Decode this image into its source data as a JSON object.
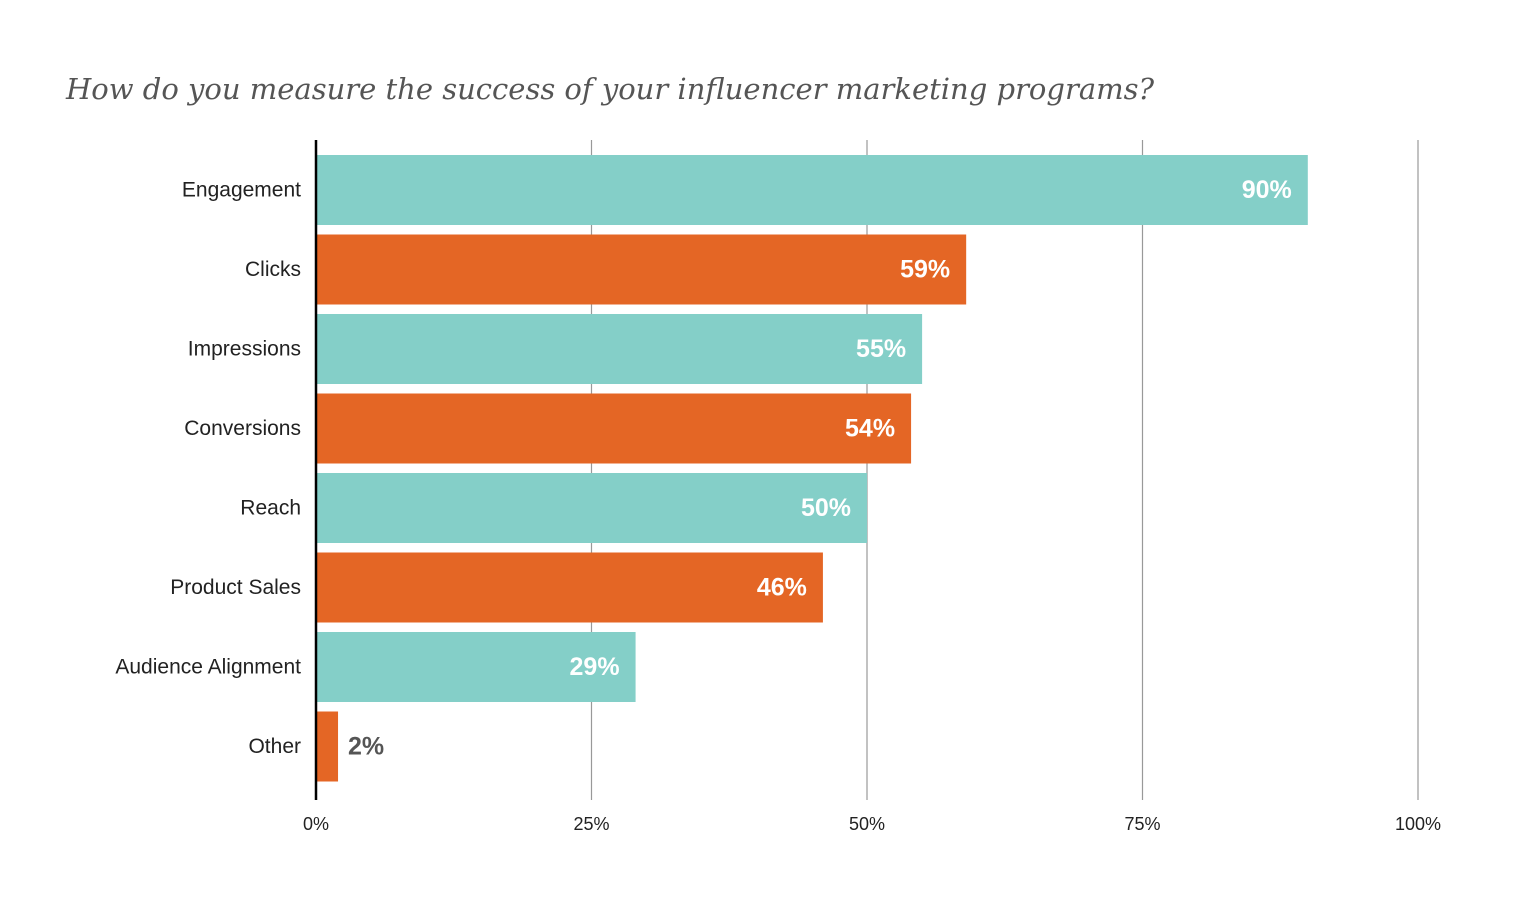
{
  "chart_data": {
    "type": "bar",
    "orientation": "horizontal",
    "title": "How do you measure the success of your influencer marketing programs?",
    "categories": [
      "Engagement",
      "Clicks",
      "Impressions",
      "Conversions",
      "Reach",
      "Product Sales",
      "Audience Alignment",
      "Other"
    ],
    "values": [
      90,
      59,
      55,
      54,
      50,
      46,
      29,
      2
    ],
    "value_labels": [
      "90%",
      "59%",
      "55%",
      "54%",
      "50%",
      "46%",
      "29%",
      "2%"
    ],
    "xlim": [
      0,
      100
    ],
    "x_ticks": [
      0,
      25,
      50,
      75,
      100
    ],
    "x_tick_labels": [
      "0%",
      "25%",
      "50%",
      "75%",
      "100%"
    ],
    "grid": true,
    "colors": {
      "teal": "#84cfc8",
      "orange": "#e46625",
      "inside_label": "#ffffff",
      "outside_label": "#555555",
      "gridline": "#999999",
      "axis": "#000000"
    },
    "bar_colors": [
      "teal",
      "orange",
      "teal",
      "orange",
      "teal",
      "orange",
      "teal",
      "orange"
    ]
  }
}
